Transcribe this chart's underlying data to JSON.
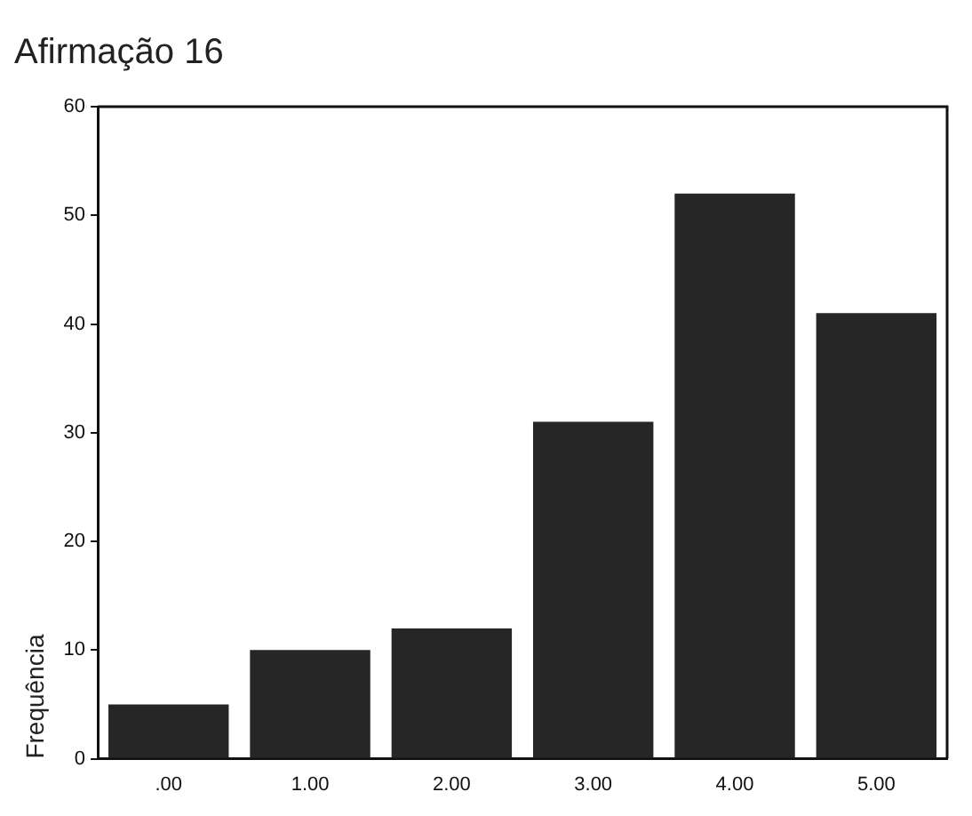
{
  "chart_data": {
    "type": "bar",
    "title": "Afirmação 16",
    "ylabel": "Frequência",
    "categories": [
      ".00",
      "1.00",
      "2.00",
      "3.00",
      "4.00",
      "5.00"
    ],
    "values": [
      5,
      10,
      12,
      31,
      52,
      41
    ],
    "color": "#262626",
    "ylim": [
      0,
      60
    ],
    "yticks": [
      0,
      10,
      20,
      30,
      40,
      50,
      60
    ],
    "grid": false,
    "legend": false
  }
}
